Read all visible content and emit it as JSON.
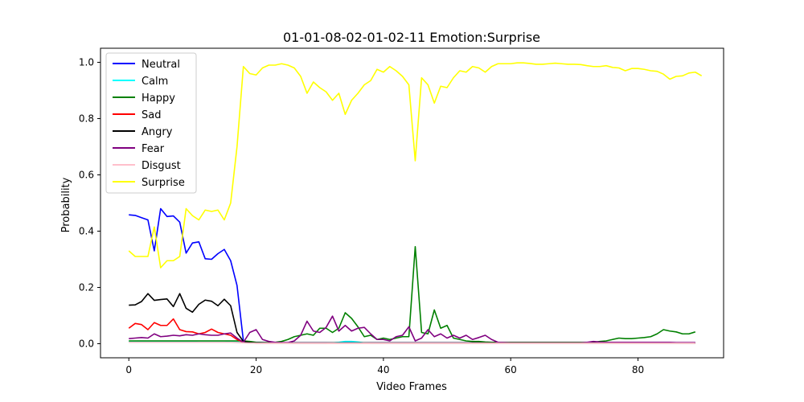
{
  "chart_data": {
    "type": "line",
    "title": "01-01-08-02-01-02-11 Emotion:Surprise",
    "xlabel": "Video Frames",
    "ylabel": "Probability",
    "xlim": [
      -4.45,
      93.45
    ],
    "ylim": [
      -0.05,
      1.05
    ],
    "xticks": [
      0,
      20,
      40,
      60,
      80
    ],
    "yticks": [
      0.0,
      0.2,
      0.4,
      0.6,
      0.8,
      1.0
    ],
    "ytick_labels": [
      "0.0",
      "0.2",
      "0.4",
      "0.6",
      "0.8",
      "1.0"
    ],
    "grid": false,
    "legend_position": "upper-left",
    "series": [
      {
        "name": "Neutral",
        "color": "#0000ff",
        "values": [
          0.458,
          0.456,
          0.448,
          0.44,
          0.33,
          0.48,
          0.452,
          0.454,
          0.432,
          0.322,
          0.358,
          0.362,
          0.302,
          0.3,
          0.32,
          0.335,
          0.295,
          0.207,
          0.01,
          0.005,
          0.005,
          0.004,
          0.003,
          0.003,
          0.003,
          0.003,
          0.003,
          0.003,
          0.003,
          0.003,
          0.003,
          0.003,
          0.003,
          0.003,
          0.003,
          0.003,
          0.003,
          0.003,
          0.003,
          0.003,
          0.003,
          0.003,
          0.003,
          0.003,
          0.003,
          0.003,
          0.003,
          0.003,
          0.003,
          0.003,
          0.003,
          0.003,
          0.003,
          0.003,
          0.003,
          0.003,
          0.003,
          0.003,
          0.003,
          0.003,
          0.003,
          0.003,
          0.003,
          0.003,
          0.003,
          0.003,
          0.003,
          0.003,
          0.003,
          0.003,
          0.003,
          0.003,
          0.003,
          0.003,
          0.003,
          0.003,
          0.003,
          0.003,
          0.003,
          0.003,
          0.003,
          0.003,
          0.003,
          0.003,
          0.003,
          0.003,
          0.003,
          0.003,
          0.003,
          0.003
        ]
      },
      {
        "name": "Calm",
        "color": "#00ffff",
        "values": [
          0.008,
          0.008,
          0.008,
          0.008,
          0.008,
          0.008,
          0.008,
          0.008,
          0.008,
          0.007,
          0.007,
          0.006,
          0.006,
          0.006,
          0.006,
          0.006,
          0.007,
          0.006,
          0.004,
          0.003,
          0.002,
          0.002,
          0.002,
          0.002,
          0.002,
          0.002,
          0.002,
          0.002,
          0.002,
          0.002,
          0.002,
          0.002,
          0.003,
          0.005,
          0.008,
          0.008,
          0.006,
          0.003,
          0.002,
          0.002,
          0.002,
          0.002,
          0.002,
          0.002,
          0.002,
          0.002,
          0.002,
          0.002,
          0.002,
          0.002,
          0.002,
          0.002,
          0.002,
          0.002,
          0.002,
          0.002,
          0.002,
          0.002,
          0.002,
          0.002,
          0.002,
          0.002,
          0.002,
          0.002,
          0.002,
          0.002,
          0.002,
          0.002,
          0.002,
          0.002,
          0.002,
          0.002,
          0.002,
          0.002,
          0.002,
          0.002,
          0.002,
          0.002,
          0.002,
          0.002,
          0.002,
          0.002,
          0.002,
          0.002,
          0.002,
          0.002,
          0.002,
          0.002,
          0.002,
          0.002
        ]
      },
      {
        "name": "Happy",
        "color": "#008000",
        "values": [
          0.01,
          0.01,
          0.01,
          0.01,
          0.01,
          0.01,
          0.01,
          0.01,
          0.01,
          0.01,
          0.01,
          0.01,
          0.01,
          0.01,
          0.01,
          0.01,
          0.01,
          0.01,
          0.01,
          0.008,
          0.005,
          0.004,
          0.004,
          0.005,
          0.008,
          0.015,
          0.025,
          0.03,
          0.035,
          0.03,
          0.055,
          0.055,
          0.04,
          0.055,
          0.11,
          0.09,
          0.06,
          0.025,
          0.03,
          0.015,
          0.02,
          0.015,
          0.02,
          0.025,
          0.025,
          0.345,
          0.04,
          0.035,
          0.12,
          0.055,
          0.065,
          0.02,
          0.015,
          0.01,
          0.008,
          0.008,
          0.006,
          0.005,
          0.005,
          0.005,
          0.005,
          0.005,
          0.005,
          0.005,
          0.005,
          0.005,
          0.005,
          0.005,
          0.005,
          0.005,
          0.005,
          0.005,
          0.005,
          0.005,
          0.008,
          0.01,
          0.015,
          0.02,
          0.018,
          0.018,
          0.02,
          0.022,
          0.025,
          0.035,
          0.05,
          0.045,
          0.042,
          0.035,
          0.035,
          0.042
        ]
      },
      {
        "name": "Sad",
        "color": "#ff0000",
        "values": [
          0.055,
          0.072,
          0.068,
          0.05,
          0.075,
          0.065,
          0.065,
          0.088,
          0.05,
          0.043,
          0.042,
          0.035,
          0.04,
          0.052,
          0.04,
          0.035,
          0.03,
          0.015,
          0.005,
          0.003,
          0.002,
          0.002,
          0.002,
          0.002,
          0.002,
          0.002,
          0.002,
          0.002,
          0.002,
          0.002,
          0.002,
          0.002,
          0.002,
          0.002,
          0.002,
          0.002,
          0.002,
          0.002,
          0.002,
          0.002,
          0.002,
          0.002,
          0.002,
          0.002,
          0.002,
          0.002,
          0.002,
          0.002,
          0.002,
          0.002,
          0.002,
          0.002,
          0.002,
          0.002,
          0.002,
          0.002,
          0.002,
          0.002,
          0.002,
          0.002,
          0.002,
          0.002,
          0.002,
          0.002,
          0.002,
          0.002,
          0.002,
          0.002,
          0.002,
          0.002,
          0.002,
          0.002,
          0.002,
          0.002,
          0.002,
          0.002,
          0.002,
          0.002,
          0.002,
          0.002,
          0.002,
          0.002,
          0.002,
          0.002,
          0.002,
          0.002,
          0.002,
          0.002,
          0.002,
          0.002
        ]
      },
      {
        "name": "Angry",
        "color": "#000000",
        "values": [
          0.137,
          0.138,
          0.15,
          0.178,
          0.154,
          0.157,
          0.159,
          0.132,
          0.178,
          0.126,
          0.112,
          0.14,
          0.155,
          0.151,
          0.135,
          0.158,
          0.135,
          0.04,
          0.008,
          0.004,
          0.003,
          0.003,
          0.003,
          0.003,
          0.003,
          0.003,
          0.003,
          0.003,
          0.003,
          0.003,
          0.003,
          0.003,
          0.003,
          0.003,
          0.003,
          0.003,
          0.003,
          0.003,
          0.003,
          0.003,
          0.003,
          0.003,
          0.003,
          0.003,
          0.003,
          0.003,
          0.003,
          0.003,
          0.003,
          0.003,
          0.003,
          0.003,
          0.003,
          0.003,
          0.003,
          0.003,
          0.003,
          0.003,
          0.003,
          0.003,
          0.003,
          0.003,
          0.003,
          0.003,
          0.003,
          0.003,
          0.003,
          0.003,
          0.003,
          0.003,
          0.003,
          0.003,
          0.003,
          0.003,
          0.003,
          0.003,
          0.003,
          0.003,
          0.003,
          0.003,
          0.003,
          0.003,
          0.003,
          0.003,
          0.003,
          0.003,
          0.003,
          0.003,
          0.003,
          0.003
        ]
      },
      {
        "name": "Fear",
        "color": "#800080",
        "values": [
          0.018,
          0.02,
          0.022,
          0.02,
          0.035,
          0.025,
          0.027,
          0.03,
          0.028,
          0.032,
          0.03,
          0.035,
          0.032,
          0.03,
          0.03,
          0.035,
          0.038,
          0.02,
          0.005,
          0.04,
          0.05,
          0.015,
          0.008,
          0.005,
          0.004,
          0.004,
          0.01,
          0.03,
          0.08,
          0.045,
          0.04,
          0.058,
          0.098,
          0.045,
          0.065,
          0.045,
          0.055,
          0.058,
          0.035,
          0.015,
          0.015,
          0.01,
          0.025,
          0.03,
          0.06,
          0.01,
          0.02,
          0.05,
          0.025,
          0.035,
          0.02,
          0.03,
          0.02,
          0.03,
          0.015,
          0.022,
          0.03,
          0.015,
          0.005,
          0.004,
          0.003,
          0.003,
          0.003,
          0.003,
          0.003,
          0.003,
          0.003,
          0.003,
          0.003,
          0.003,
          0.003,
          0.003,
          0.005,
          0.008,
          0.006,
          0.005,
          0.005,
          0.005,
          0.005,
          0.005,
          0.005,
          0.005,
          0.005,
          0.005,
          0.005,
          0.005,
          0.004,
          0.004,
          0.004,
          0.004
        ]
      },
      {
        "name": "Disgust",
        "color": "#ffc0cb",
        "values": [
          0.005,
          0.005,
          0.005,
          0.005,
          0.005,
          0.005,
          0.005,
          0.005,
          0.005,
          0.005,
          0.005,
          0.005,
          0.005,
          0.005,
          0.005,
          0.005,
          0.005,
          0.004,
          0.003,
          0.002,
          0.002,
          0.002,
          0.002,
          0.002,
          0.002,
          0.002,
          0.002,
          0.002,
          0.002,
          0.002,
          0.002,
          0.002,
          0.002,
          0.002,
          0.002,
          0.002,
          0.002,
          0.002,
          0.002,
          0.002,
          0.002,
          0.002,
          0.002,
          0.002,
          0.002,
          0.002,
          0.002,
          0.002,
          0.002,
          0.002,
          0.002,
          0.002,
          0.002,
          0.002,
          0.002,
          0.002,
          0.002,
          0.002,
          0.002,
          0.002,
          0.002,
          0.002,
          0.002,
          0.002,
          0.002,
          0.002,
          0.002,
          0.002,
          0.002,
          0.002,
          0.002,
          0.002,
          0.002,
          0.002,
          0.002,
          0.002,
          0.002,
          0.002,
          0.002,
          0.002,
          0.002,
          0.002,
          0.002,
          0.002,
          0.002,
          0.002,
          0.002,
          0.002,
          0.002,
          0.002
        ]
      },
      {
        "name": "Surprise",
        "color": "#ffff00",
        "values": [
          0.33,
          0.31,
          0.31,
          0.31,
          0.415,
          0.27,
          0.295,
          0.295,
          0.31,
          0.48,
          0.455,
          0.44,
          0.475,
          0.47,
          0.475,
          0.44,
          0.5,
          0.7,
          0.985,
          0.96,
          0.955,
          0.98,
          0.99,
          0.99,
          0.995,
          0.99,
          0.98,
          0.95,
          0.89,
          0.93,
          0.91,
          0.895,
          0.865,
          0.89,
          0.815,
          0.865,
          0.89,
          0.92,
          0.935,
          0.975,
          0.965,
          0.985,
          0.97,
          0.95,
          0.92,
          0.65,
          0.945,
          0.92,
          0.855,
          0.915,
          0.91,
          0.945,
          0.97,
          0.965,
          0.985,
          0.98,
          0.965,
          0.985,
          0.995,
          0.995,
          0.995,
          0.998,
          0.998,
          0.996,
          0.993,
          0.993,
          0.995,
          0.997,
          0.995,
          0.993,
          0.993,
          0.992,
          0.988,
          0.985,
          0.985,
          0.988,
          0.982,
          0.98,
          0.97,
          0.978,
          0.978,
          0.975,
          0.97,
          0.968,
          0.958,
          0.94,
          0.95,
          0.952,
          0.962,
          0.965,
          0.952
        ]
      }
    ]
  }
}
